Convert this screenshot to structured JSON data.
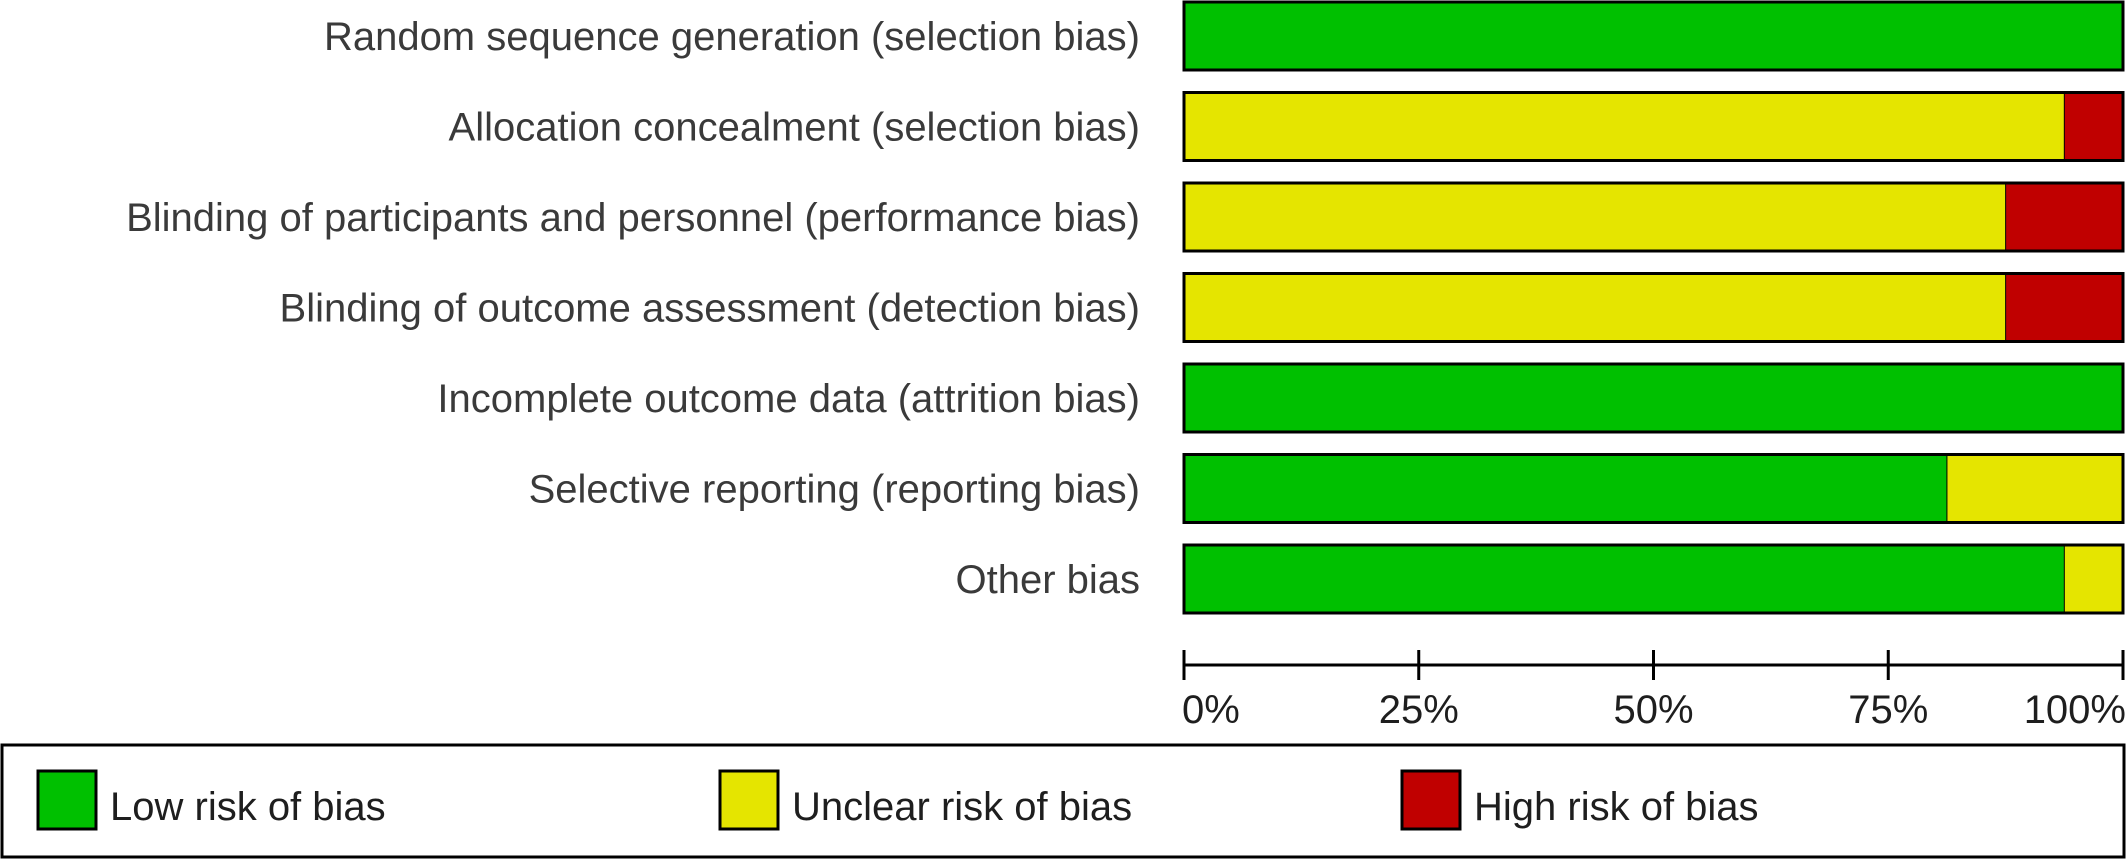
{
  "chart_data": {
    "type": "bar",
    "orientation": "horizontal",
    "stacked": true,
    "title": "",
    "xlabel": "",
    "ylabel": "",
    "xlim": [
      0,
      100
    ],
    "x_ticks": [
      "0%",
      "25%",
      "50%",
      "75%",
      "100%"
    ],
    "categories": [
      "Random sequence generation (selection bias)",
      "Allocation concealment (selection bias)",
      "Blinding of participants and personnel (performance bias)",
      "Blinding of outcome assessment (detection bias)",
      "Incomplete outcome data (attrition bias)",
      "Selective reporting (reporting bias)",
      "Other bias"
    ],
    "series": [
      {
        "name": "Low risk of bias",
        "color": "#00c000",
        "values": [
          100,
          0,
          0,
          0,
          100,
          81.25,
          93.75
        ]
      },
      {
        "name": "Unclear risk of bias",
        "color": "#e5e500",
        "values": [
          0,
          93.75,
          87.5,
          87.5,
          0,
          18.75,
          6.25
        ]
      },
      {
        "name": "High risk of bias",
        "color": "#c00000",
        "values": [
          0,
          6.25,
          12.5,
          12.5,
          0,
          0,
          0
        ]
      }
    ],
    "grid": false,
    "legend_position": "bottom"
  }
}
